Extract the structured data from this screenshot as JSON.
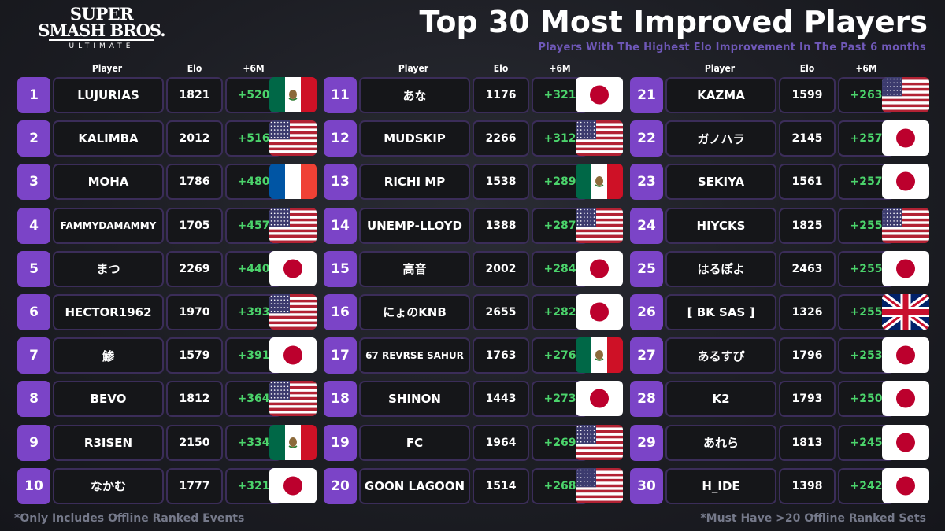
{
  "logo": {
    "line1": "SUPER",
    "line2": "SMASH BROS.",
    "line3": "ULTIMATE"
  },
  "title": "Top 30 Most Improved Players",
  "subtitle": "Players With The Highest Elo Improvement In The Past 6 months",
  "headers": {
    "player": "Player",
    "elo": "Elo",
    "improvement": "+6M"
  },
  "footer": {
    "left": "*Only Includes Offline Ranked Events",
    "right": "*Must Have >20 Offline Ranked Sets"
  },
  "colors": {
    "rank_bg": "#7b44c7",
    "improvement": "#4bd36b",
    "subtitle": "#6f58b8",
    "cell_border": "#3b2d59"
  },
  "players": [
    {
      "rank": "1",
      "name": "LUJURIAS",
      "elo": "1821",
      "improvement": "+520",
      "flag": "mexico-flag-icon"
    },
    {
      "rank": "2",
      "name": "KALIMBA",
      "elo": "2012",
      "improvement": "+516",
      "flag": "usa-flag-icon"
    },
    {
      "rank": "3",
      "name": "MOHA",
      "elo": "1786",
      "improvement": "+480",
      "flag": "france-flag-icon"
    },
    {
      "rank": "4",
      "name": "FAMMYDAMAMMY",
      "elo": "1705",
      "improvement": "+457",
      "flag": "usa-flag-icon"
    },
    {
      "rank": "5",
      "name": "まつ",
      "elo": "2269",
      "improvement": "+440",
      "flag": "japan-flag-icon"
    },
    {
      "rank": "6",
      "name": "HECTOR1962",
      "elo": "1970",
      "improvement": "+393",
      "flag": "usa-flag-icon"
    },
    {
      "rank": "7",
      "name": "鯵",
      "elo": "1579",
      "improvement": "+391",
      "flag": "japan-flag-icon"
    },
    {
      "rank": "8",
      "name": "BEVO",
      "elo": "1812",
      "improvement": "+364",
      "flag": "usa-flag-icon"
    },
    {
      "rank": "9",
      "name": "R3ISEN",
      "elo": "2150",
      "improvement": "+334",
      "flag": "mexico-flag-icon"
    },
    {
      "rank": "10",
      "name": "なかむ",
      "elo": "1777",
      "improvement": "+321",
      "flag": "japan-flag-icon"
    },
    {
      "rank": "11",
      "name": "あな",
      "elo": "1176",
      "improvement": "+321",
      "flag": "japan-flag-icon"
    },
    {
      "rank": "12",
      "name": "MUDSKIP",
      "elo": "2266",
      "improvement": "+312",
      "flag": "usa-flag-icon"
    },
    {
      "rank": "13",
      "name": "RICHI MP",
      "elo": "1538",
      "improvement": "+289",
      "flag": "mexico-flag-icon"
    },
    {
      "rank": "14",
      "name": "UNEMP-LLOYD",
      "elo": "1388",
      "improvement": "+287",
      "flag": "usa-flag-icon"
    },
    {
      "rank": "15",
      "name": "高音",
      "elo": "2002",
      "improvement": "+284",
      "flag": "japan-flag-icon"
    },
    {
      "rank": "16",
      "name": "にょのKNB",
      "elo": "2655",
      "improvement": "+282",
      "flag": "japan-flag-icon"
    },
    {
      "rank": "17",
      "name": "67 REVRSE SAHUR",
      "elo": "1763",
      "improvement": "+276",
      "flag": "mexico-flag-icon"
    },
    {
      "rank": "18",
      "name": "SHINON",
      "elo": "1443",
      "improvement": "+273",
      "flag": "japan-flag-icon"
    },
    {
      "rank": "19",
      "name": "FC",
      "elo": "1964",
      "improvement": "+269",
      "flag": "usa-flag-icon"
    },
    {
      "rank": "20",
      "name": "GOON LAGOON",
      "elo": "1514",
      "improvement": "+268",
      "flag": "usa-flag-icon"
    },
    {
      "rank": "21",
      "name": "KAZMA",
      "elo": "1599",
      "improvement": "+263",
      "flag": "usa-flag-icon"
    },
    {
      "rank": "22",
      "name": "ガノハラ",
      "elo": "2145",
      "improvement": "+257",
      "flag": "japan-flag-icon"
    },
    {
      "rank": "23",
      "name": "SEKIYA",
      "elo": "1561",
      "improvement": "+257",
      "flag": "japan-flag-icon"
    },
    {
      "rank": "24",
      "name": "HIYCKS",
      "elo": "1825",
      "improvement": "+255",
      "flag": "usa-flag-icon"
    },
    {
      "rank": "25",
      "name": "はるぽよ",
      "elo": "2463",
      "improvement": "+255",
      "flag": "japan-flag-icon"
    },
    {
      "rank": "26",
      "name": "[ BK SAS ]",
      "elo": "1326",
      "improvement": "+255",
      "flag": "uk-flag-icon"
    },
    {
      "rank": "27",
      "name": "あるすぴ",
      "elo": "1796",
      "improvement": "+253",
      "flag": "japan-flag-icon"
    },
    {
      "rank": "28",
      "name": "K2",
      "elo": "1793",
      "improvement": "+250",
      "flag": "japan-flag-icon"
    },
    {
      "rank": "29",
      "name": "あれら",
      "elo": "1813",
      "improvement": "+245",
      "flag": "japan-flag-icon"
    },
    {
      "rank": "30",
      "name": "H_IDE",
      "elo": "1398",
      "improvement": "+242",
      "flag": "japan-flag-icon"
    }
  ]
}
